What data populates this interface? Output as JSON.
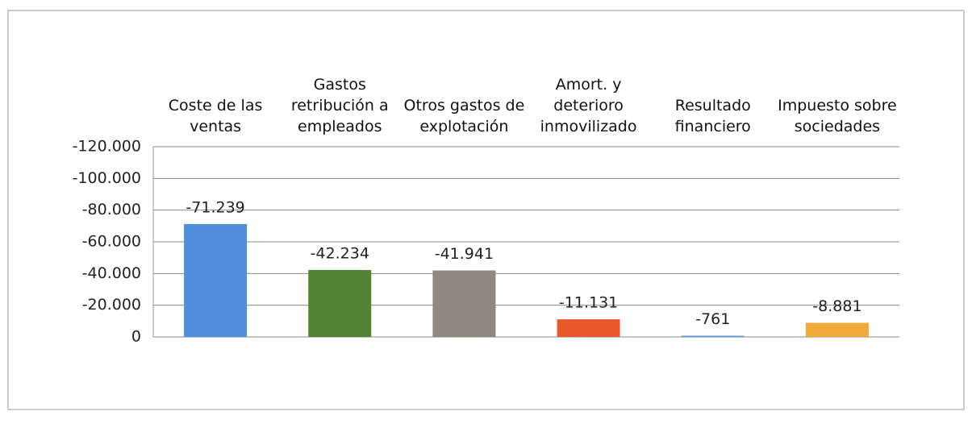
{
  "chart_data": {
    "type": "bar",
    "categories": [
      "Coste de las ventas",
      "Gastos retribución a empleados",
      "Otros gastos de explotación",
      "Amort. y deterioro inmovilizado",
      "Resultado financiero",
      "Impuesto sobre sociedades"
    ],
    "values": [
      -71239,
      -42234,
      -41941,
      -11131,
      -761,
      -8881
    ],
    "value_labels": [
      "-71.239",
      "-42.234",
      "-41.941",
      "-11.131",
      "-761",
      "-8.881"
    ],
    "colors": [
      "#4f8fdc",
      "#548235",
      "#8d8882",
      "#e9572b",
      "#5b9bd5",
      "#efaa3a"
    ],
    "ylim": [
      0,
      -120000
    ],
    "yticks": [
      0,
      {
        "value": -20000,
        "label": "-20.000"
      },
      {
        "value": -40000,
        "label": "-40.000"
      },
      {
        "value": -60000,
        "label": "-60.000"
      },
      {
        "value": -80000,
        "label": "-80.000"
      },
      {
        "value": -100000,
        "label": "-100.000"
      },
      {
        "value": -120000,
        "label": "-120.000"
      }
    ],
    "grid": true
  }
}
